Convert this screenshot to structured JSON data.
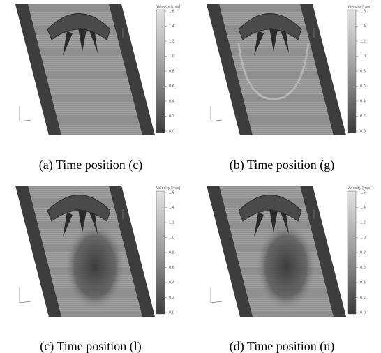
{
  "colorbar": {
    "title": "Velocity [m/s]",
    "ticks": [
      "1.6",
      "1.4",
      "1.2",
      "1.0",
      "0.8",
      "0.6",
      "0.4",
      "0.2",
      "0.0"
    ]
  },
  "panels": [
    {
      "caption": "(a)  Time position (c)"
    },
    {
      "caption": "(b)  Time position (g)"
    },
    {
      "caption": "(c)  Time position (l)"
    },
    {
      "caption": "(d)  Time position (n)"
    }
  ]
}
